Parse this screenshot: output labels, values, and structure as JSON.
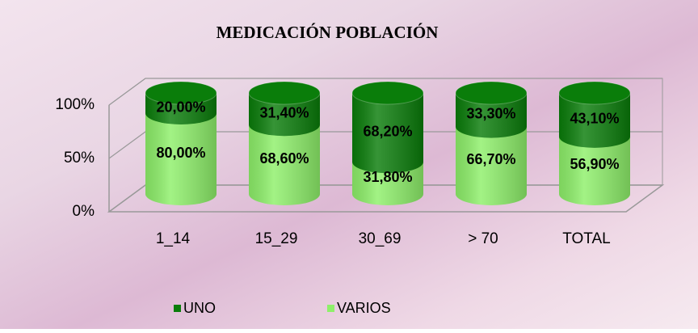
{
  "chart_data": {
    "type": "bar3d",
    "title": "MEDICACIÓN POBLACIÓN",
    "categories": [
      "1_14",
      "15_29",
      "30_69",
      "> 70",
      "TOTAL"
    ],
    "series": [
      {
        "name": "UNO",
        "color": "#0a7d0a",
        "values": [
          20,
          31.4,
          68.2,
          33.3,
          43.1
        ],
        "value_labels": [
          "20,00%",
          "31,40%",
          "68,20%",
          "33,30%",
          "43,10%"
        ]
      },
      {
        "name": "VARIOS",
        "color": "#8ef06a",
        "values": [
          80,
          68.6,
          31.8,
          66.7,
          56.9
        ],
        "value_labels": [
          "80,00%",
          "68,60%",
          "31,80%",
          "66,70%",
          "56,90%"
        ]
      }
    ],
    "ylim": [
      0,
      100
    ],
    "yticks": [
      {
        "value": 0,
        "label": "0%"
      },
      {
        "value": 50,
        "label": "50%"
      },
      {
        "value": 100,
        "label": "100%"
      }
    ],
    "grid": true,
    "legend": "bottom"
  }
}
